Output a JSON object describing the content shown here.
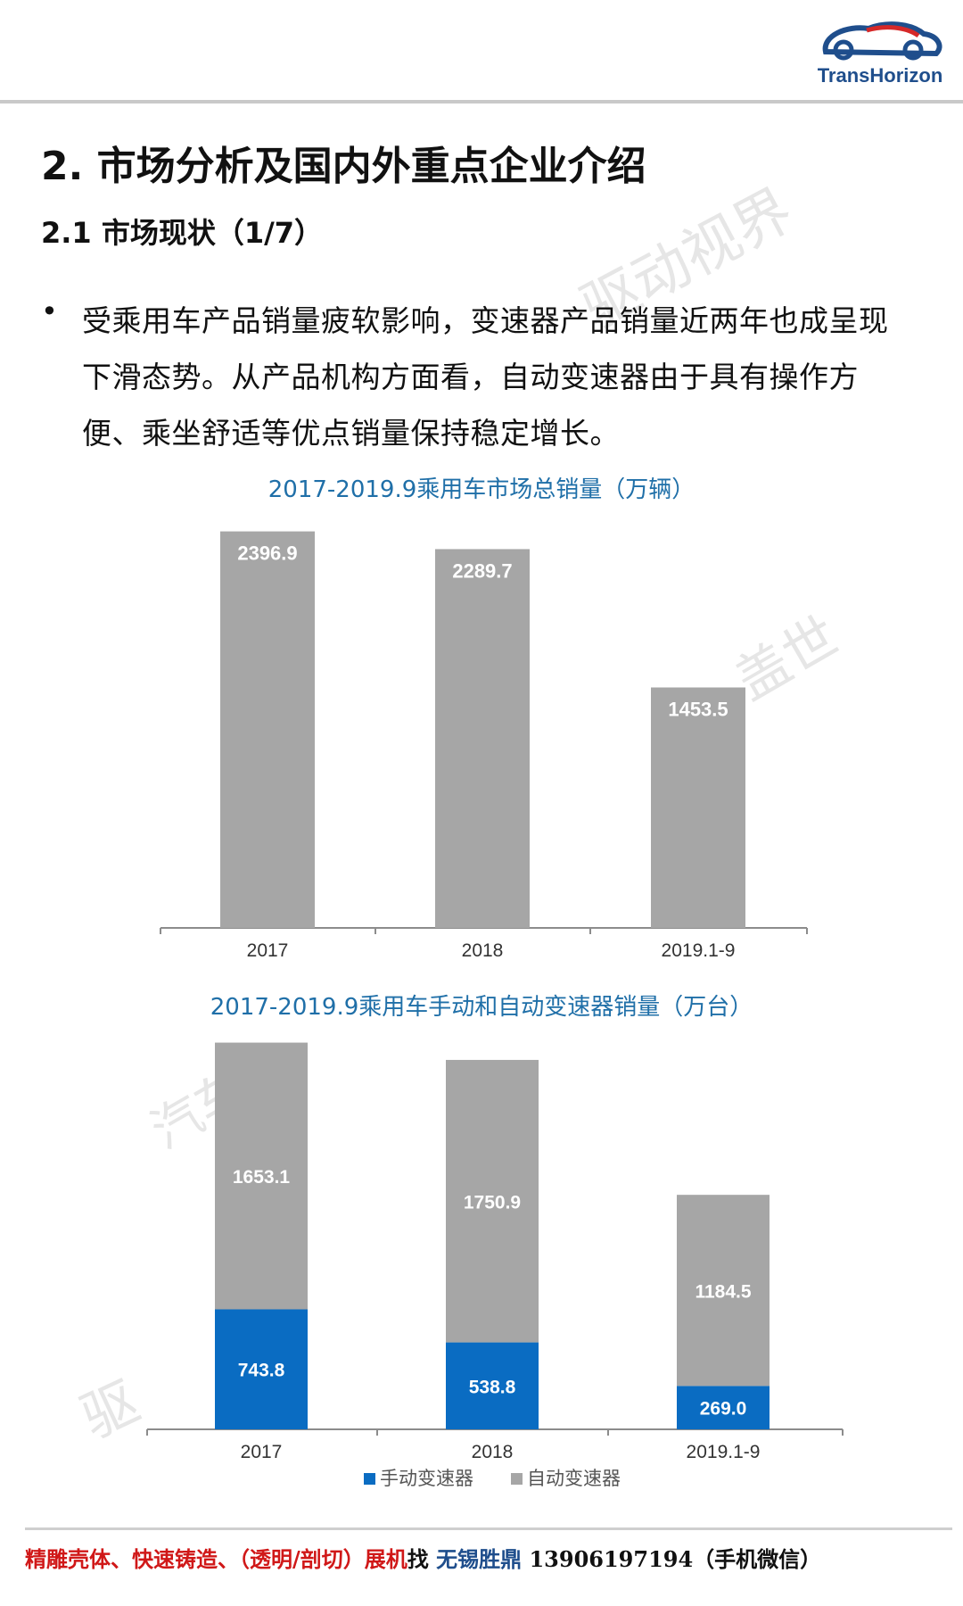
{
  "header": {
    "brand": "TransHorizon"
  },
  "title": "2. 市场分析及国内外重点企业介绍",
  "subtitle": "2.1 市场现状（1/7）",
  "bullet": "•",
  "paragraph": "受乘用车产品销量疲软影响，变速器产品销量近两年也成呈现下滑态势。从产品机构方面看，自动变速器由于具有操作方便、乘坐舒适等优点销量保持稳定增长。",
  "watermarks": {
    "top": "驱动视界",
    "left": "驱",
    "mid": "盖世",
    "lower": "汽车"
  },
  "colors": {
    "accent": "#1f6fa8",
    "bar_gray": "#a6a6a6",
    "manual_blue": "#0a6cc2"
  },
  "chart_data": [
    {
      "type": "bar",
      "title": "2017-2019.9乘用车市场总销量（万辆）",
      "categories": [
        "2017",
        "2018",
        "2019.1-9"
      ],
      "values": [
        2396.9,
        2289.7,
        1453.5
      ],
      "value_labels": [
        "2396.9",
        "2289.7",
        "1453.5"
      ],
      "ylim": [
        0,
        2400
      ],
      "grid": false,
      "legend": "none"
    },
    {
      "type": "bar",
      "stacked": true,
      "title": "2017-2019.9乘用车手动和自动变速器销量（万台）",
      "categories": [
        "2017",
        "2018",
        "2019.1-9"
      ],
      "series": [
        {
          "name": "手动变速器",
          "values": [
            743.8,
            538.8,
            269.0
          ],
          "labels": [
            "743.8",
            "538.8",
            "269.0"
          ],
          "color": "#0a6cc2"
        },
        {
          "name": "自动变速器",
          "values": [
            1653.1,
            1750.9,
            1184.5
          ],
          "labels": [
            "1653.1",
            "1750.9",
            "1184.5"
          ],
          "color": "#a6a6a6"
        }
      ],
      "ylim": [
        0,
        2400
      ],
      "grid": false,
      "legend": "bottom"
    }
  ],
  "footer": {
    "part1": "精雕壳体、快速铸造、（透明/剖切）展机",
    "part2": "找 ",
    "part3": "无锡胜鼎",
    "part4": " 13906197194（手机微信）"
  }
}
